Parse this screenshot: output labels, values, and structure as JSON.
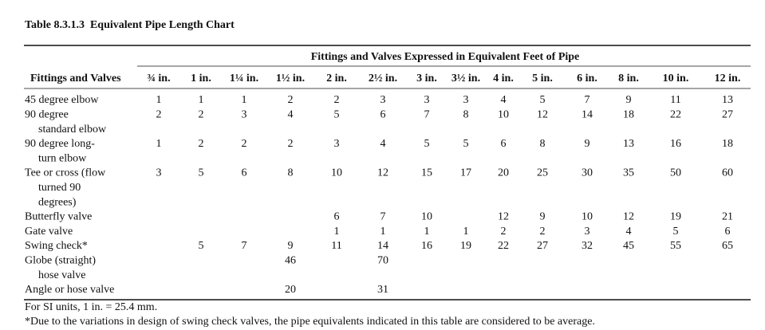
{
  "title": "Table 8.3.1.3  Equivalent Pipe Length Chart",
  "table": {
    "spanner": "Fittings and Valves Expressed in Equivalent Feet of Pipe",
    "row_header": "Fittings and Valves",
    "columns": [
      "¾ in.",
      "1 in.",
      "1¼ in.",
      "1½ in.",
      "2 in.",
      "2½ in.",
      "3 in.",
      "3½ in.",
      "4 in.",
      "5 in.",
      "6 in.",
      "8 in.",
      "10 in.",
      "12 in."
    ],
    "rows": [
      {
        "label": [
          "45 degree elbow"
        ],
        "values": [
          1,
          1,
          1,
          2,
          2,
          3,
          3,
          3,
          4,
          5,
          7,
          9,
          11,
          13
        ]
      },
      {
        "label": [
          "90 degree",
          "standard elbow"
        ],
        "values": [
          2,
          2,
          3,
          4,
          5,
          6,
          7,
          8,
          10,
          12,
          14,
          18,
          22,
          27
        ]
      },
      {
        "label": [
          "90 degree long-",
          "turn elbow"
        ],
        "values": [
          1,
          2,
          2,
          2,
          3,
          4,
          5,
          5,
          6,
          8,
          9,
          13,
          16,
          18
        ]
      },
      {
        "label": [
          "Tee or cross (flow",
          "turned 90",
          "degrees)"
        ],
        "values": [
          3,
          5,
          6,
          8,
          10,
          12,
          15,
          17,
          20,
          25,
          30,
          35,
          50,
          60
        ]
      },
      {
        "label": [
          "Butterfly valve"
        ],
        "values": [
          null,
          null,
          null,
          null,
          6,
          7,
          10,
          null,
          12,
          9,
          10,
          12,
          19,
          21
        ]
      },
      {
        "label": [
          "Gate valve"
        ],
        "values": [
          null,
          null,
          null,
          null,
          1,
          1,
          1,
          1,
          2,
          2,
          3,
          4,
          5,
          6
        ]
      },
      {
        "label": [
          "Swing check*"
        ],
        "values": [
          null,
          5,
          7,
          9,
          11,
          14,
          16,
          19,
          22,
          27,
          32,
          45,
          55,
          65
        ]
      },
      {
        "label": [
          "Globe (straight)",
          "hose valve"
        ],
        "values": [
          null,
          null,
          null,
          46,
          null,
          70,
          null,
          null,
          null,
          null,
          null,
          null,
          null,
          null
        ]
      },
      {
        "label": [
          "Angle or hose valve"
        ],
        "values": [
          null,
          null,
          null,
          20,
          null,
          31,
          null,
          null,
          null,
          null,
          null,
          null,
          null,
          null
        ]
      }
    ]
  },
  "notes": [
    "For SI units, 1 in. = 25.4 mm.",
    "*Due to the variations in design of swing check valves, the pipe equivalents indicated in this table are considered to be average."
  ]
}
